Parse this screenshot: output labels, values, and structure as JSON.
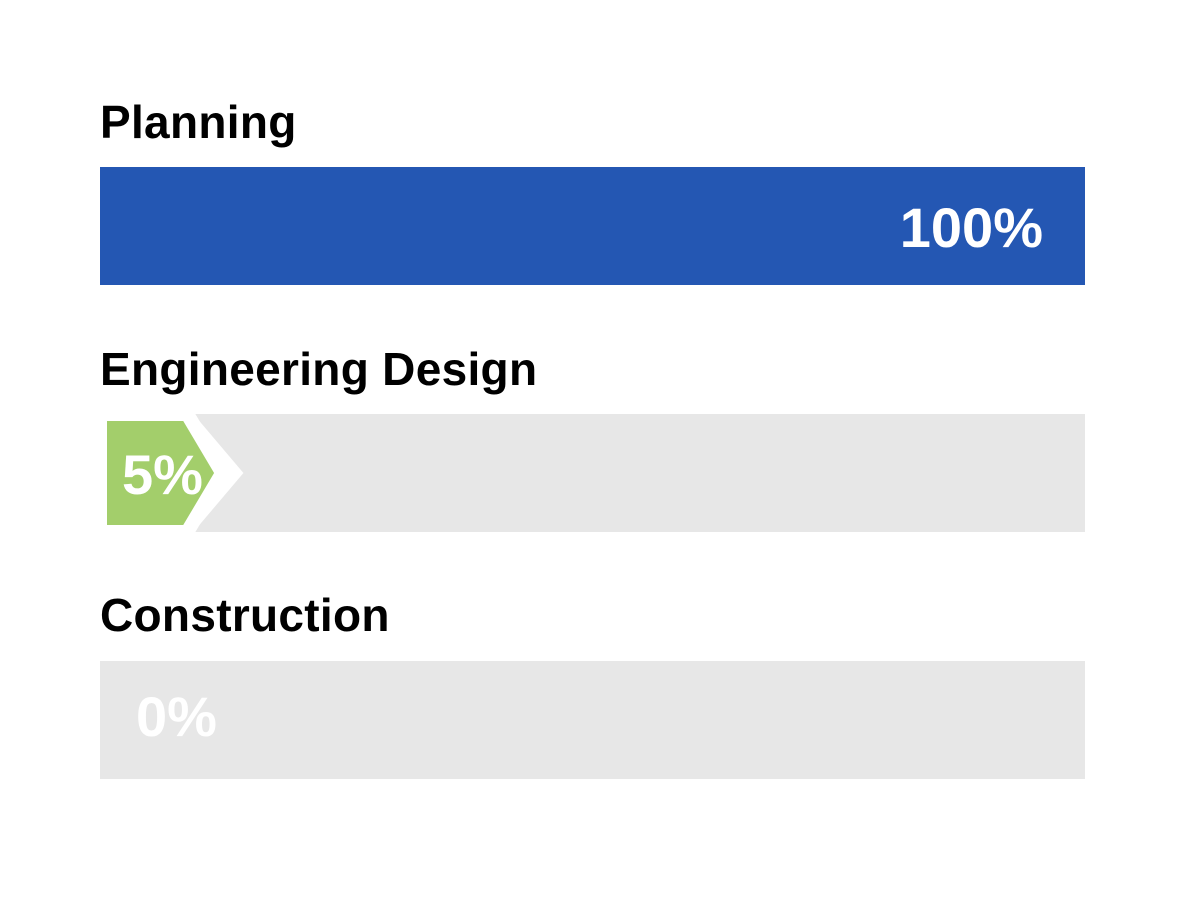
{
  "chart_data": {
    "type": "bar",
    "orientation": "horizontal",
    "categories": [
      "Planning",
      "Engineering Design",
      "Construction"
    ],
    "values": [
      100,
      5,
      0
    ],
    "value_labels": [
      "100%",
      "5%",
      "0%"
    ],
    "xlim": [
      0,
      100
    ],
    "unit": "%",
    "colors": [
      "#2457b3",
      "#a3ce6b",
      "#e7e7e7"
    ],
    "track_color": "#e7e7e7",
    "grid": false,
    "legend": "none"
  }
}
